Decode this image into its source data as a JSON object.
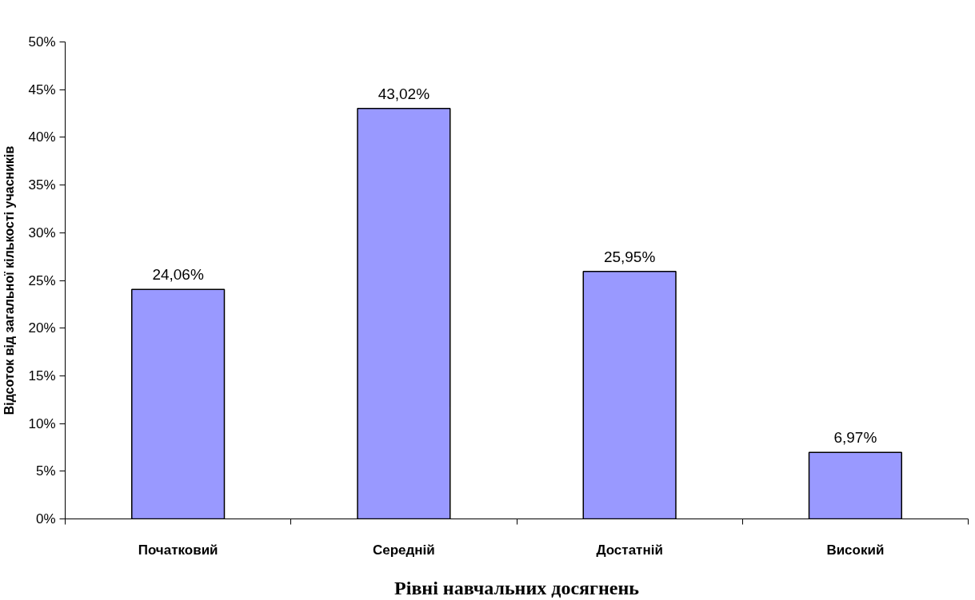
{
  "chart_data": {
    "type": "bar",
    "xlabel": "Рівні навчальних досягнень",
    "ylabel": "Відсоток від загальної кількості учасників",
    "categories": [
      "Початковий",
      "Середній",
      "Достатній",
      "Високий"
    ],
    "values": [
      24.06,
      43.02,
      25.95,
      6.97
    ],
    "value_labels": [
      "24,06%",
      "43,02%",
      "25,95%",
      "6,97%"
    ],
    "color": "#9999ff",
    "ylim": [
      0,
      50
    ],
    "yticks": [
      {
        "value": 0,
        "label": "0%"
      },
      {
        "value": 5,
        "label": "5%"
      },
      {
        "value": 10,
        "label": "10%"
      },
      {
        "value": 15,
        "label": "15%"
      },
      {
        "value": 20,
        "label": "20%"
      },
      {
        "value": 25,
        "label": "25%"
      },
      {
        "value": 30,
        "label": "30%"
      },
      {
        "value": 35,
        "label": "35%"
      },
      {
        "value": 40,
        "label": "40%"
      },
      {
        "value": 45,
        "label": "45%"
      },
      {
        "value": 50,
        "label": "50%"
      }
    ],
    "grid": false
  }
}
